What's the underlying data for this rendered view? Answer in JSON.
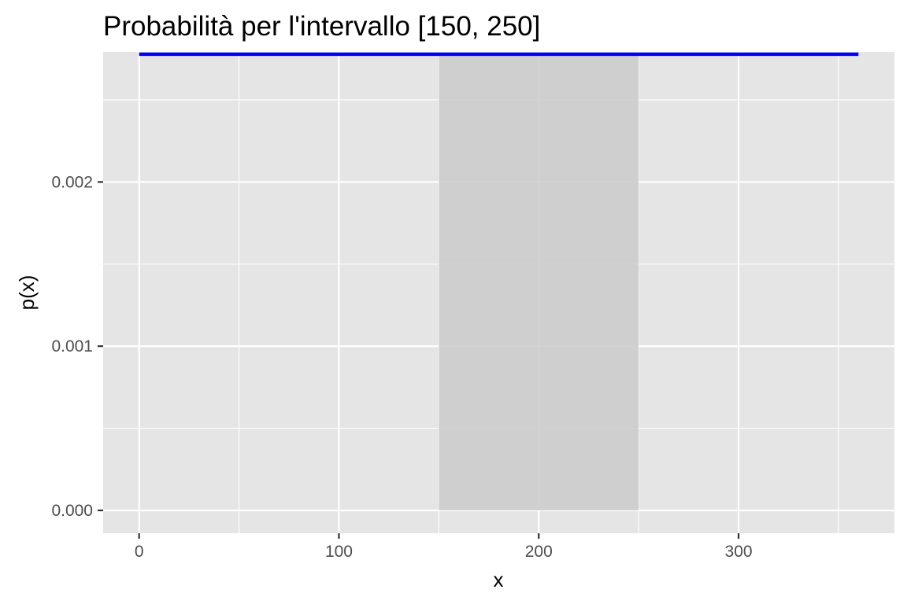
{
  "chart_data": {
    "type": "area",
    "title": "Probabilità per l'intervallo [150, 250]",
    "xlabel": "x",
    "ylabel": "p(x)",
    "xlim": [
      -18,
      378
    ],
    "ylim": [
      -0.000139,
      0.002792
    ],
    "x_ticks": [
      0,
      100,
      200,
      300
    ],
    "x_tick_labels": [
      "0",
      "100",
      "200",
      "300"
    ],
    "y_ticks": [
      0.0,
      0.001,
      0.002
    ],
    "y_tick_labels": [
      "0.000",
      "0.001",
      "0.002"
    ],
    "x_minor_gridlines": [
      50,
      150,
      250,
      350
    ],
    "y_minor_gridlines": [
      0.0005,
      0.0015,
      0.0025
    ],
    "grid": true,
    "series": [
      {
        "kind": "line",
        "x": [
          0,
          360
        ],
        "y": [
          0.002778,
          0.002778
        ],
        "color": "#0000ff"
      },
      {
        "kind": "shaded-area",
        "x": [
          150,
          250
        ],
        "y": [
          0.002778,
          0.002778
        ],
        "color": "#cccccc"
      }
    ],
    "colors": {
      "panel_background": "#e5e5e5",
      "gridline": "#ffffff",
      "density_line": "#0000ff",
      "shaded_area": "#cccccc"
    }
  }
}
